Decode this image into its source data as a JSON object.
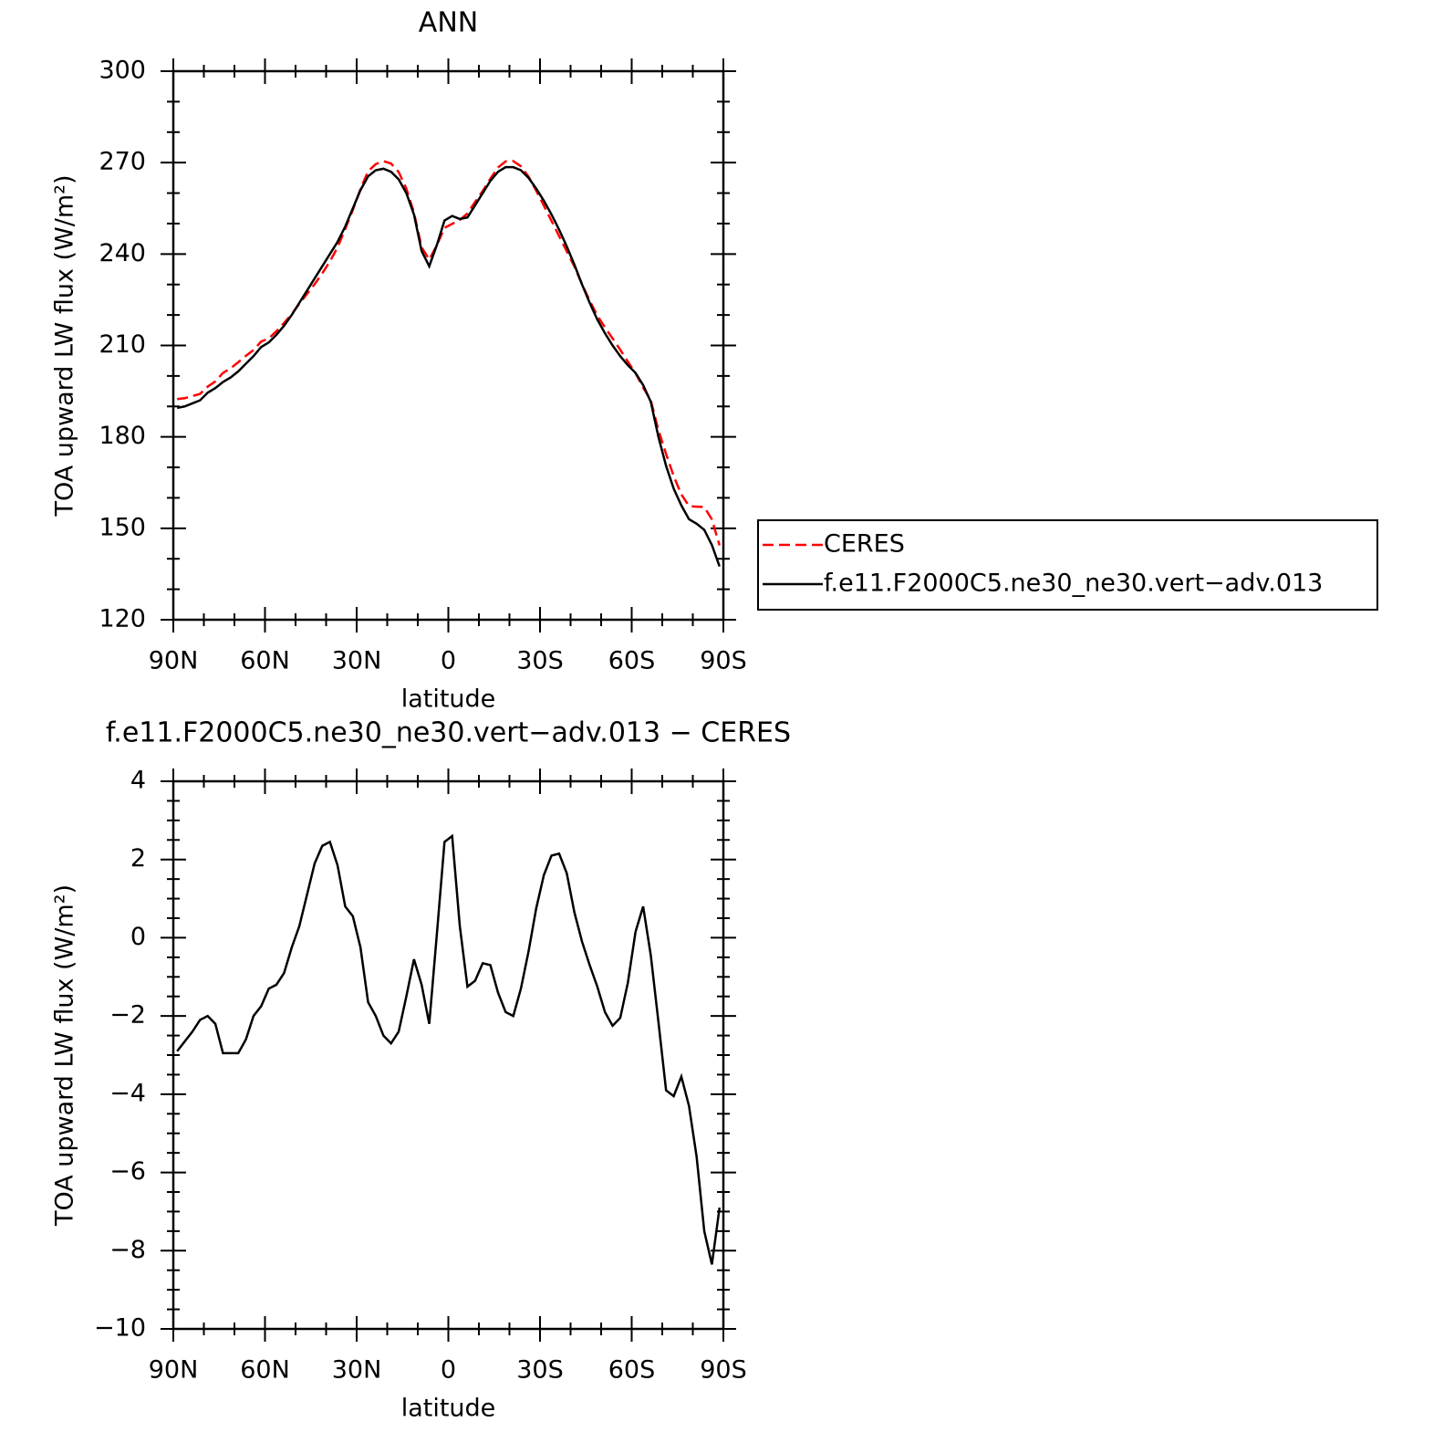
{
  "chart_data": [
    {
      "type": "line",
      "title": "ANN",
      "xlabel": "latitude",
      "ylabel": "TOA upward LW flux (W/m²)",
      "x": [
        88.75,
        86.25,
        83.75,
        81.25,
        78.75,
        76.25,
        73.75,
        71.25,
        68.75,
        66.25,
        63.75,
        61.25,
        58.75,
        56.25,
        53.75,
        51.25,
        48.75,
        46.25,
        43.75,
        41.25,
        38.75,
        36.25,
        33.75,
        31.25,
        28.75,
        26.25,
        23.75,
        21.25,
        18.75,
        16.25,
        13.75,
        11.25,
        8.75,
        6.25,
        3.75,
        1.25,
        -1.25,
        -3.75,
        -6.25,
        -8.75,
        -11.25,
        -13.75,
        -16.25,
        -18.75,
        -21.25,
        -23.75,
        -26.25,
        -28.75,
        -31.25,
        -33.75,
        -36.25,
        -38.75,
        -41.25,
        -43.75,
        -46.25,
        -48.75,
        -51.25,
        -53.75,
        -56.25,
        -58.75,
        -61.25,
        -63.75,
        -66.25,
        -68.75,
        -71.25,
        -73.75,
        -76.25,
        -78.75,
        -81.25,
        -83.75,
        -86.25,
        -88.75
      ],
      "series": [
        {
          "name": "CERES",
          "color": "#ff0000",
          "linestyle": "dashed",
          "values": [
            192.4,
            192.7,
            193.4,
            194.1,
            196.5,
            198.2,
            201,
            202.5,
            204.5,
            206.6,
            208.5,
            211.3,
            212.3,
            214.7,
            217.4,
            220.3,
            223.7,
            226.9,
            230.1,
            233.7,
            237.6,
            242.2,
            248.2,
            254.5,
            261.3,
            267.2,
            269.5,
            270.5,
            269.7,
            266.9,
            261.5,
            253.6,
            242.2,
            238.2,
            242.9,
            248.6,
            249.9,
            251.2,
            253.3,
            257.1,
            260.7,
            264.7,
            268.4,
            270.4,
            270.5,
            268.8,
            265.4,
            260.8,
            255.9,
            250.9,
            245.9,
            240.9,
            235.9,
            230.1,
            224.7,
            219.8,
            215.9,
            212.3,
            208.6,
            204.7,
            200.9,
            196.2,
            192,
            182.2,
            174.4,
            167.1,
            161.1,
            157.3,
            157.1,
            157,
            152.9,
            144.4
          ]
        },
        {
          "name": "f.e11.F2000C5.ne30_ne30.vert−adv.013",
          "color": "#000000",
          "linestyle": "solid",
          "values": [
            189.5,
            190,
            191,
            192,
            194.5,
            196,
            198,
            199.5,
            201.5,
            204,
            206.5,
            209.5,
            211,
            213.5,
            216.5,
            220,
            224,
            228,
            232,
            236,
            240,
            244,
            249,
            255,
            261,
            265.5,
            267.5,
            268,
            267,
            264.5,
            260,
            253,
            241,
            236,
            243,
            251,
            252.5,
            251.5,
            252,
            256,
            260,
            264,
            267,
            268.5,
            268.5,
            267.5,
            265,
            261.5,
            257.5,
            253,
            248,
            242.5,
            236.5,
            230,
            224,
            218.5,
            214,
            210,
            206.5,
            203.5,
            201,
            197,
            191.5,
            180,
            170.5,
            163,
            157.5,
            153,
            151.5,
            149.5,
            144.5,
            137.5
          ]
        }
      ],
      "xlim": [
        90,
        -90
      ],
      "xticks": [
        {
          "value": 90,
          "label": "90N"
        },
        {
          "value": 60,
          "label": "60N"
        },
        {
          "value": 30,
          "label": "30N"
        },
        0,
        {
          "value": -30,
          "label": "30S"
        },
        {
          "value": -60,
          "label": "60S"
        },
        {
          "value": -90,
          "label": "90S"
        }
      ],
      "ylim": [
        120,
        300
      ],
      "yticks": [
        120,
        150,
        180,
        210,
        240,
        270,
        300
      ],
      "legend": "right"
    },
    {
      "type": "line",
      "title": "f.e11.F2000C5.ne30_ne30.vert−adv.013 − CERES",
      "xlabel": "latitude",
      "ylabel": "TOA upward LW flux (W/m²)",
      "x": [
        88.75,
        86.25,
        83.75,
        81.25,
        78.75,
        76.25,
        73.75,
        71.25,
        68.75,
        66.25,
        63.75,
        61.25,
        58.75,
        56.25,
        53.75,
        51.25,
        48.75,
        46.25,
        43.75,
        41.25,
        38.75,
        36.25,
        33.75,
        31.25,
        28.75,
        26.25,
        23.75,
        21.25,
        18.75,
        16.25,
        13.75,
        11.25,
        8.75,
        6.25,
        3.75,
        1.25,
        -1.25,
        -3.75,
        -6.25,
        -8.75,
        -11.25,
        -13.75,
        -16.25,
        -18.75,
        -21.25,
        -23.75,
        -26.25,
        -28.75,
        -31.25,
        -33.75,
        -36.25,
        -38.75,
        -41.25,
        -43.75,
        -46.25,
        -48.75,
        -51.25,
        -53.75,
        -56.25,
        -58.75,
        -61.25,
        -63.75,
        -66.25,
        -68.75,
        -71.25,
        -73.75,
        -76.25,
        -78.75,
        -81.25,
        -83.75,
        -86.25,
        -88.75
      ],
      "values": [
        -2.9,
        -2.65,
        -2.4,
        -2.1,
        -2,
        -2.2,
        -2.95,
        -2.95,
        -2.95,
        -2.6,
        -2,
        -1.75,
        -1.3,
        -1.2,
        -0.9,
        -0.25,
        0.3,
        1.1,
        1.9,
        2.35,
        2.45,
        1.85,
        0.8,
        0.55,
        -0.25,
        -1.65,
        -2,
        -2.5,
        -2.7,
        -2.4,
        -1.5,
        -0.55,
        -1.2,
        -2.2,
        0.1,
        2.45,
        2.6,
        0.3,
        -1.25,
        -1.1,
        -0.65,
        -0.7,
        -1.4,
        -1.9,
        -2,
        -1.3,
        -0.35,
        0.75,
        1.6,
        2.1,
        2.15,
        1.65,
        0.65,
        -0.1,
        -0.7,
        -1.25,
        -1.9,
        -2.25,
        -2.05,
        -1.15,
        0.15,
        0.8,
        -0.45,
        -2.15,
        -3.9,
        -4.05,
        -3.55,
        -4.3,
        -5.6,
        -7.5,
        -8.35,
        -6.9
      ],
      "color": "#000000",
      "xlim": [
        90,
        -90
      ],
      "xticks": [
        {
          "value": 90,
          "label": "90N"
        },
        {
          "value": 60,
          "label": "60N"
        },
        {
          "value": 30,
          "label": "30N"
        },
        0,
        {
          "value": -30,
          "label": "30S"
        },
        {
          "value": -60,
          "label": "60S"
        },
        {
          "value": -90,
          "label": "90S"
        }
      ],
      "ylim": [
        -10,
        4
      ],
      "yticks": [
        {
          "value": -10,
          "label": "−10"
        },
        {
          "value": -8,
          "label": "−8"
        },
        {
          "value": -6,
          "label": "−6"
        },
        {
          "value": -4,
          "label": "−4"
        },
        {
          "value": -2,
          "label": "−2"
        },
        0,
        2,
        4
      ]
    }
  ]
}
